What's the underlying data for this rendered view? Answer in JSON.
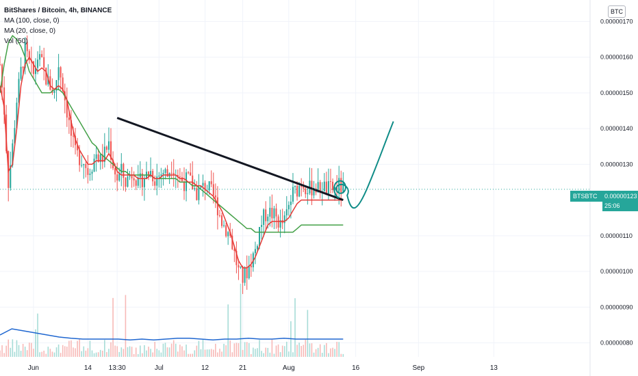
{
  "header": {
    "title": "BitShares / Bitcoin, 4h, BINANCE",
    "indicators": [
      "MA (100, close, 0)",
      "MA (20, close, 0)",
      "Vol (50)"
    ],
    "currency_badge": "BTC"
  },
  "last_price": {
    "symbol": "BTSBTC",
    "value": "0.00000123",
    "countdown": "25:06"
  },
  "colors": {
    "up": "#26a69a",
    "down": "#ef5350",
    "ma20": "#e53935",
    "ma100": "#43a047",
    "vol_ma": "#1e66d0",
    "trendline": "#131722",
    "drawing": "#0f8c87"
  },
  "chart_data": {
    "type": "candlestick",
    "y_axis": {
      "ticks": [
        "0.00000170",
        "0.00000160",
        "0.00000150",
        "0.00000140",
        "0.00000130",
        "0.00000110",
        "0.00000100",
        "0.00000090",
        "0.00000080"
      ],
      "tick_values": [
        170,
        160,
        150,
        140,
        130,
        110,
        100,
        90,
        80
      ],
      "unit_scale": "1e-9 BTC",
      "ylim": [
        78,
        176
      ]
    },
    "x_axis": {
      "ticks": [
        "Jun",
        "14",
        "13:30",
        "Jul",
        "12",
        "21",
        "Aug",
        "16",
        "Sep",
        "13"
      ],
      "tick_values": [
        0,
        13,
        20,
        30,
        41,
        50,
        61,
        77,
        92,
        110
      ],
      "xlim": [
        -8,
        133
      ],
      "unit": "days since 1 Jun"
    },
    "price_series_days": [
      -8,
      -7,
      -6,
      -5,
      -4,
      -3,
      -2,
      -1,
      0,
      1,
      2,
      3,
      4,
      5,
      6,
      7,
      8,
      9,
      10,
      11,
      12,
      13,
      14,
      15,
      16,
      17,
      18,
      19,
      20,
      21,
      22,
      23,
      24,
      25,
      26,
      27,
      28,
      29,
      30,
      31,
      32,
      33,
      34,
      35,
      36,
      37,
      38,
      39,
      40,
      41,
      42,
      43,
      44,
      45,
      46,
      47,
      48,
      49,
      50,
      51,
      52,
      53,
      54,
      55,
      56,
      57,
      58,
      59,
      60,
      61,
      62,
      63,
      64,
      65,
      66,
      67,
      68,
      69,
      70,
      71,
      72,
      73,
      74
    ],
    "close": [
      158,
      145,
      125,
      135,
      148,
      156,
      162,
      158,
      155,
      160,
      158,
      154,
      152,
      150,
      158,
      152,
      145,
      138,
      133,
      132,
      131,
      128,
      130,
      133,
      131,
      133,
      136,
      130,
      126,
      128,
      125,
      127,
      128,
      124,
      126,
      127,
      128,
      126,
      127,
      128,
      127,
      130,
      128,
      126,
      125,
      126,
      124,
      122,
      123,
      124,
      123,
      121,
      118,
      114,
      112,
      110,
      105,
      100,
      98,
      100,
      103,
      106,
      112,
      115,
      117,
      116,
      115,
      113,
      114,
      118,
      122,
      123,
      125,
      124,
      123,
      124,
      123,
      124,
      123,
      123,
      123,
      124,
      123
    ],
    "ma20": [
      152,
      146,
      128,
      130,
      140,
      152,
      158,
      160,
      158,
      156,
      157,
      156,
      152,
      151,
      152,
      151,
      148,
      142,
      137,
      134,
      132,
      130,
      130,
      131,
      131,
      131,
      133,
      131,
      128,
      127,
      127,
      127,
      127,
      126,
      126,
      126,
      127,
      126,
      126,
      127,
      127,
      127,
      127,
      126,
      126,
      125,
      125,
      124,
      124,
      123,
      122,
      121,
      119,
      117,
      114,
      111,
      107,
      103,
      101,
      101,
      102,
      104,
      107,
      110,
      113,
      114,
      114,
      114,
      114,
      115,
      117,
      119,
      120,
      120,
      120,
      120,
      120,
      120,
      120,
      120,
      120,
      120,
      120
    ],
    "ma100": [
      150,
      158,
      164,
      166,
      165,
      163,
      160,
      156,
      154,
      152,
      150,
      150,
      150,
      151,
      151,
      150,
      148,
      146,
      144,
      142,
      140,
      138,
      136,
      135,
      133,
      132,
      131,
      130,
      129,
      128,
      128,
      127,
      127,
      127,
      127,
      127,
      127,
      126,
      126,
      126,
      126,
      126,
      126,
      125,
      125,
      125,
      124,
      124,
      123,
      122,
      121,
      120,
      119,
      118,
      117,
      116,
      115,
      114,
      113,
      112,
      112,
      111,
      111,
      111,
      111,
      111,
      111,
      111,
      111,
      111,
      111,
      112,
      113,
      113,
      113,
      113,
      113,
      113,
      113,
      113,
      113,
      113,
      113
    ],
    "trendline": {
      "from": {
        "day": 20,
        "price": 143
      },
      "to": {
        "day": 74,
        "price": 120
      }
    },
    "volume_ma_levels": [
      0.2,
      0.35,
      0.3,
      0.25,
      0.2,
      0.15,
      0.12,
      0.1,
      0.1,
      0.1,
      0.1,
      0.08,
      0.1,
      0.08,
      0.1,
      0.12,
      0.12,
      0.1,
      0.08,
      0.1,
      0.1,
      0.12,
      0.1,
      0.1,
      0.12,
      0.1,
      0.1,
      0.1,
      0.1,
      0.1
    ],
    "hand_drawn_projection": [
      [
        73,
        124
      ],
      [
        76,
        117
      ],
      [
        80,
        124
      ],
      [
        83,
        133
      ],
      [
        86,
        142
      ]
    ],
    "last_price": 123
  }
}
